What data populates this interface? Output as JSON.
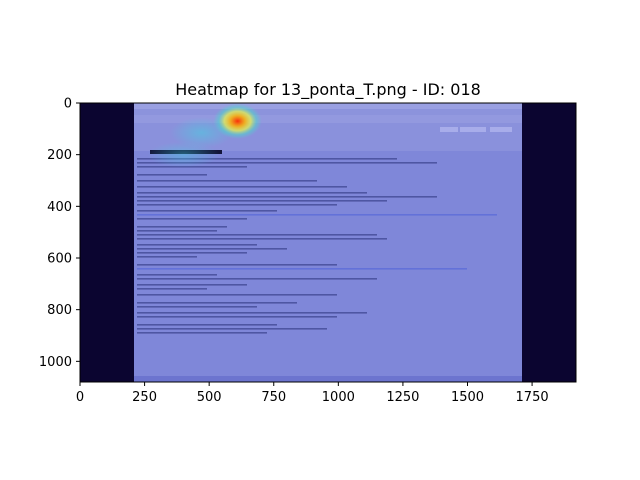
{
  "chart_data": {
    "type": "heatmap",
    "title": "Heatmap for 13_ponta_T.png - ID: 018",
    "xlabel": "",
    "ylabel": "",
    "xlim": [
      0,
      1920
    ],
    "ylim": [
      1080,
      0
    ],
    "x_ticks": [
      0,
      250,
      500,
      750,
      1000,
      1250,
      1500,
      1750
    ],
    "y_ticks": [
      0,
      200,
      400,
      600,
      800,
      1000
    ],
    "grid": false,
    "underlying_image": "email client screenshot (Mozilla Thunderbird message view)",
    "overlay_colormap": "jet",
    "background_color": "#0b0530",
    "overlay_tint": "#6f78d6",
    "hotspots": [
      {
        "x": 610,
        "y": 70,
        "intensity": 1.0,
        "spread_x": 75,
        "spread_y": 55
      },
      {
        "x": 470,
        "y": 115,
        "intensity": 0.45,
        "spread_x": 120,
        "spread_y": 60
      },
      {
        "x": 400,
        "y": 200,
        "intensity": 0.3,
        "spread_x": 140,
        "spread_y": 50
      }
    ]
  }
}
